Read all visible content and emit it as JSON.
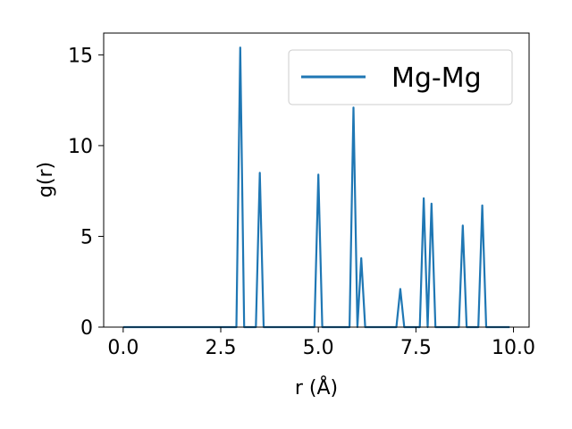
{
  "chart_data": {
    "type": "line",
    "title": "",
    "xlabel": "r (Å)",
    "ylabel": "g(r)",
    "xlim": [
      -0.5,
      10.4
    ],
    "ylim": [
      0,
      16.2
    ],
    "xticks": [
      {
        "value": 0.0,
        "label": "0.0"
      },
      {
        "value": 2.5,
        "label": "2.5"
      },
      {
        "value": 5.0,
        "label": "5.0"
      },
      {
        "value": 7.5,
        "label": "7.5"
      },
      {
        "value": 10.0,
        "label": "10.0"
      }
    ],
    "yticks": [
      {
        "value": 0,
        "label": "0"
      },
      {
        "value": 5,
        "label": "5"
      },
      {
        "value": 10,
        "label": "10"
      },
      {
        "value": 15,
        "label": "15"
      }
    ],
    "grid": false,
    "legend_position": "top-right",
    "series": [
      {
        "name": "Mg-Mg",
        "color": "#1f77b4",
        "x": [
          0.0,
          2.9,
          3.0,
          3.1,
          3.4,
          3.5,
          3.6,
          4.9,
          5.0,
          5.1,
          5.8,
          5.9,
          6.0,
          6.1,
          6.2,
          7.0,
          7.1,
          7.2,
          7.6,
          7.7,
          7.8,
          7.9,
          8.0,
          8.6,
          8.7,
          8.8,
          9.1,
          9.2,
          9.3,
          9.9
        ],
        "y": [
          0,
          0,
          15.4,
          0,
          0,
          8.5,
          0,
          0,
          8.4,
          0,
          0,
          12.1,
          0,
          3.8,
          0,
          0,
          2.1,
          0,
          0,
          7.1,
          0,
          6.8,
          0,
          0,
          5.6,
          0,
          0,
          6.7,
          0,
          0
        ]
      }
    ]
  }
}
